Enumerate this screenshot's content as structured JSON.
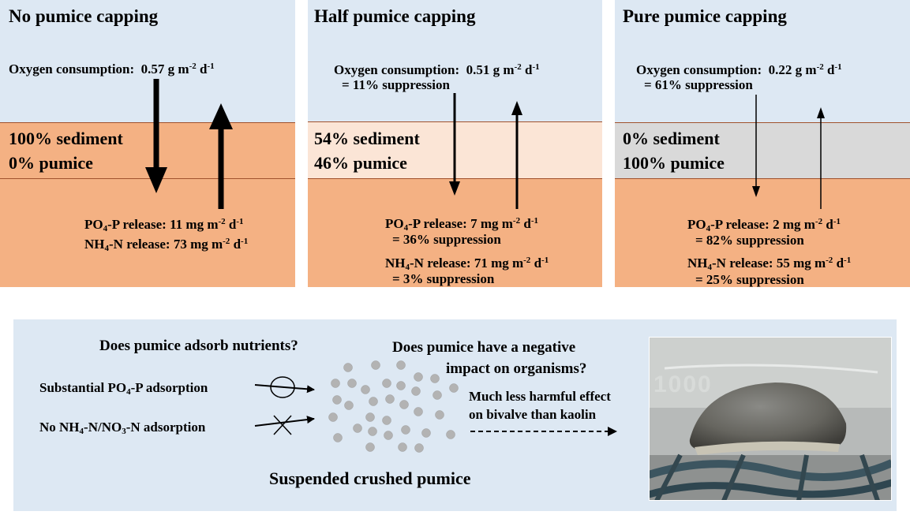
{
  "panels": [
    {
      "title": "No pumice capping",
      "oxygen_label": "Oxygen consumption:",
      "oxygen_value": "0.57 g m",
      "oxygen_note": "",
      "layer_line1": "100% sediment",
      "layer_line2": "0% pumice",
      "po4_label": "PO",
      "po4_value": "-P release: 11 mg m",
      "po4_note": "",
      "nh4_label": "NH",
      "nh4_value": "-N release: 73 mg m",
      "nh4_note": "",
      "layer_color": "#f4b183"
    },
    {
      "title": "Half pumice capping",
      "oxygen_label": "Oxygen consumption:",
      "oxygen_value": "0.51 g m",
      "oxygen_note": "= 11% suppression",
      "layer_line1": "54% sediment",
      "layer_line2": "46% pumice",
      "po4_label": "PO",
      "po4_value": "-P release: 7 mg m",
      "po4_note": "= 36% suppression",
      "nh4_label": "NH",
      "nh4_value": "-N release: 71 mg m",
      "nh4_note": "= 3% suppression",
      "layer_color": "#fbe5d6"
    },
    {
      "title": "Pure pumice capping",
      "oxygen_label": "Oxygen consumption:",
      "oxygen_value": "0.22 g m",
      "oxygen_note": "= 61% suppression",
      "layer_line1": "0% sediment",
      "layer_line2": "100% pumice",
      "po4_label": "PO",
      "po4_value": "-P release: 2 mg m",
      "po4_note": "= 82% suppression",
      "nh4_label": "NH",
      "nh4_value": "-N release: 55 mg m",
      "nh4_note": "= 25% suppression",
      "layer_color": "#d9d9d9"
    }
  ],
  "units": {
    "exp": "-2",
    "d": " d",
    "d_exp": "-1",
    "sub4": "4"
  },
  "bottom": {
    "q1": "Does pumice adsorb nutrients?",
    "q2_line1": "Does pumice have a negative",
    "q2_line2": "impact on organisms?",
    "po4_ads_prefix": "Substantial  PO",
    "po4_ads_suffix": "-P adsorption",
    "nh4_ads_prefix": "No NH",
    "nh4_ads_mid": "-N/NO",
    "nh4_ads_sub3": "3",
    "nh4_ads_suffix": "-N  adsorption",
    "effect_line1": "Much less harmful  effect",
    "effect_line2": "on bivalve than kaolin",
    "caption": "Suspended crushed pumice",
    "photo_label": "1000"
  },
  "colors": {
    "sky": "#dde8f3",
    "sediment": "#f4b183",
    "particle": "#b3b3b3"
  }
}
